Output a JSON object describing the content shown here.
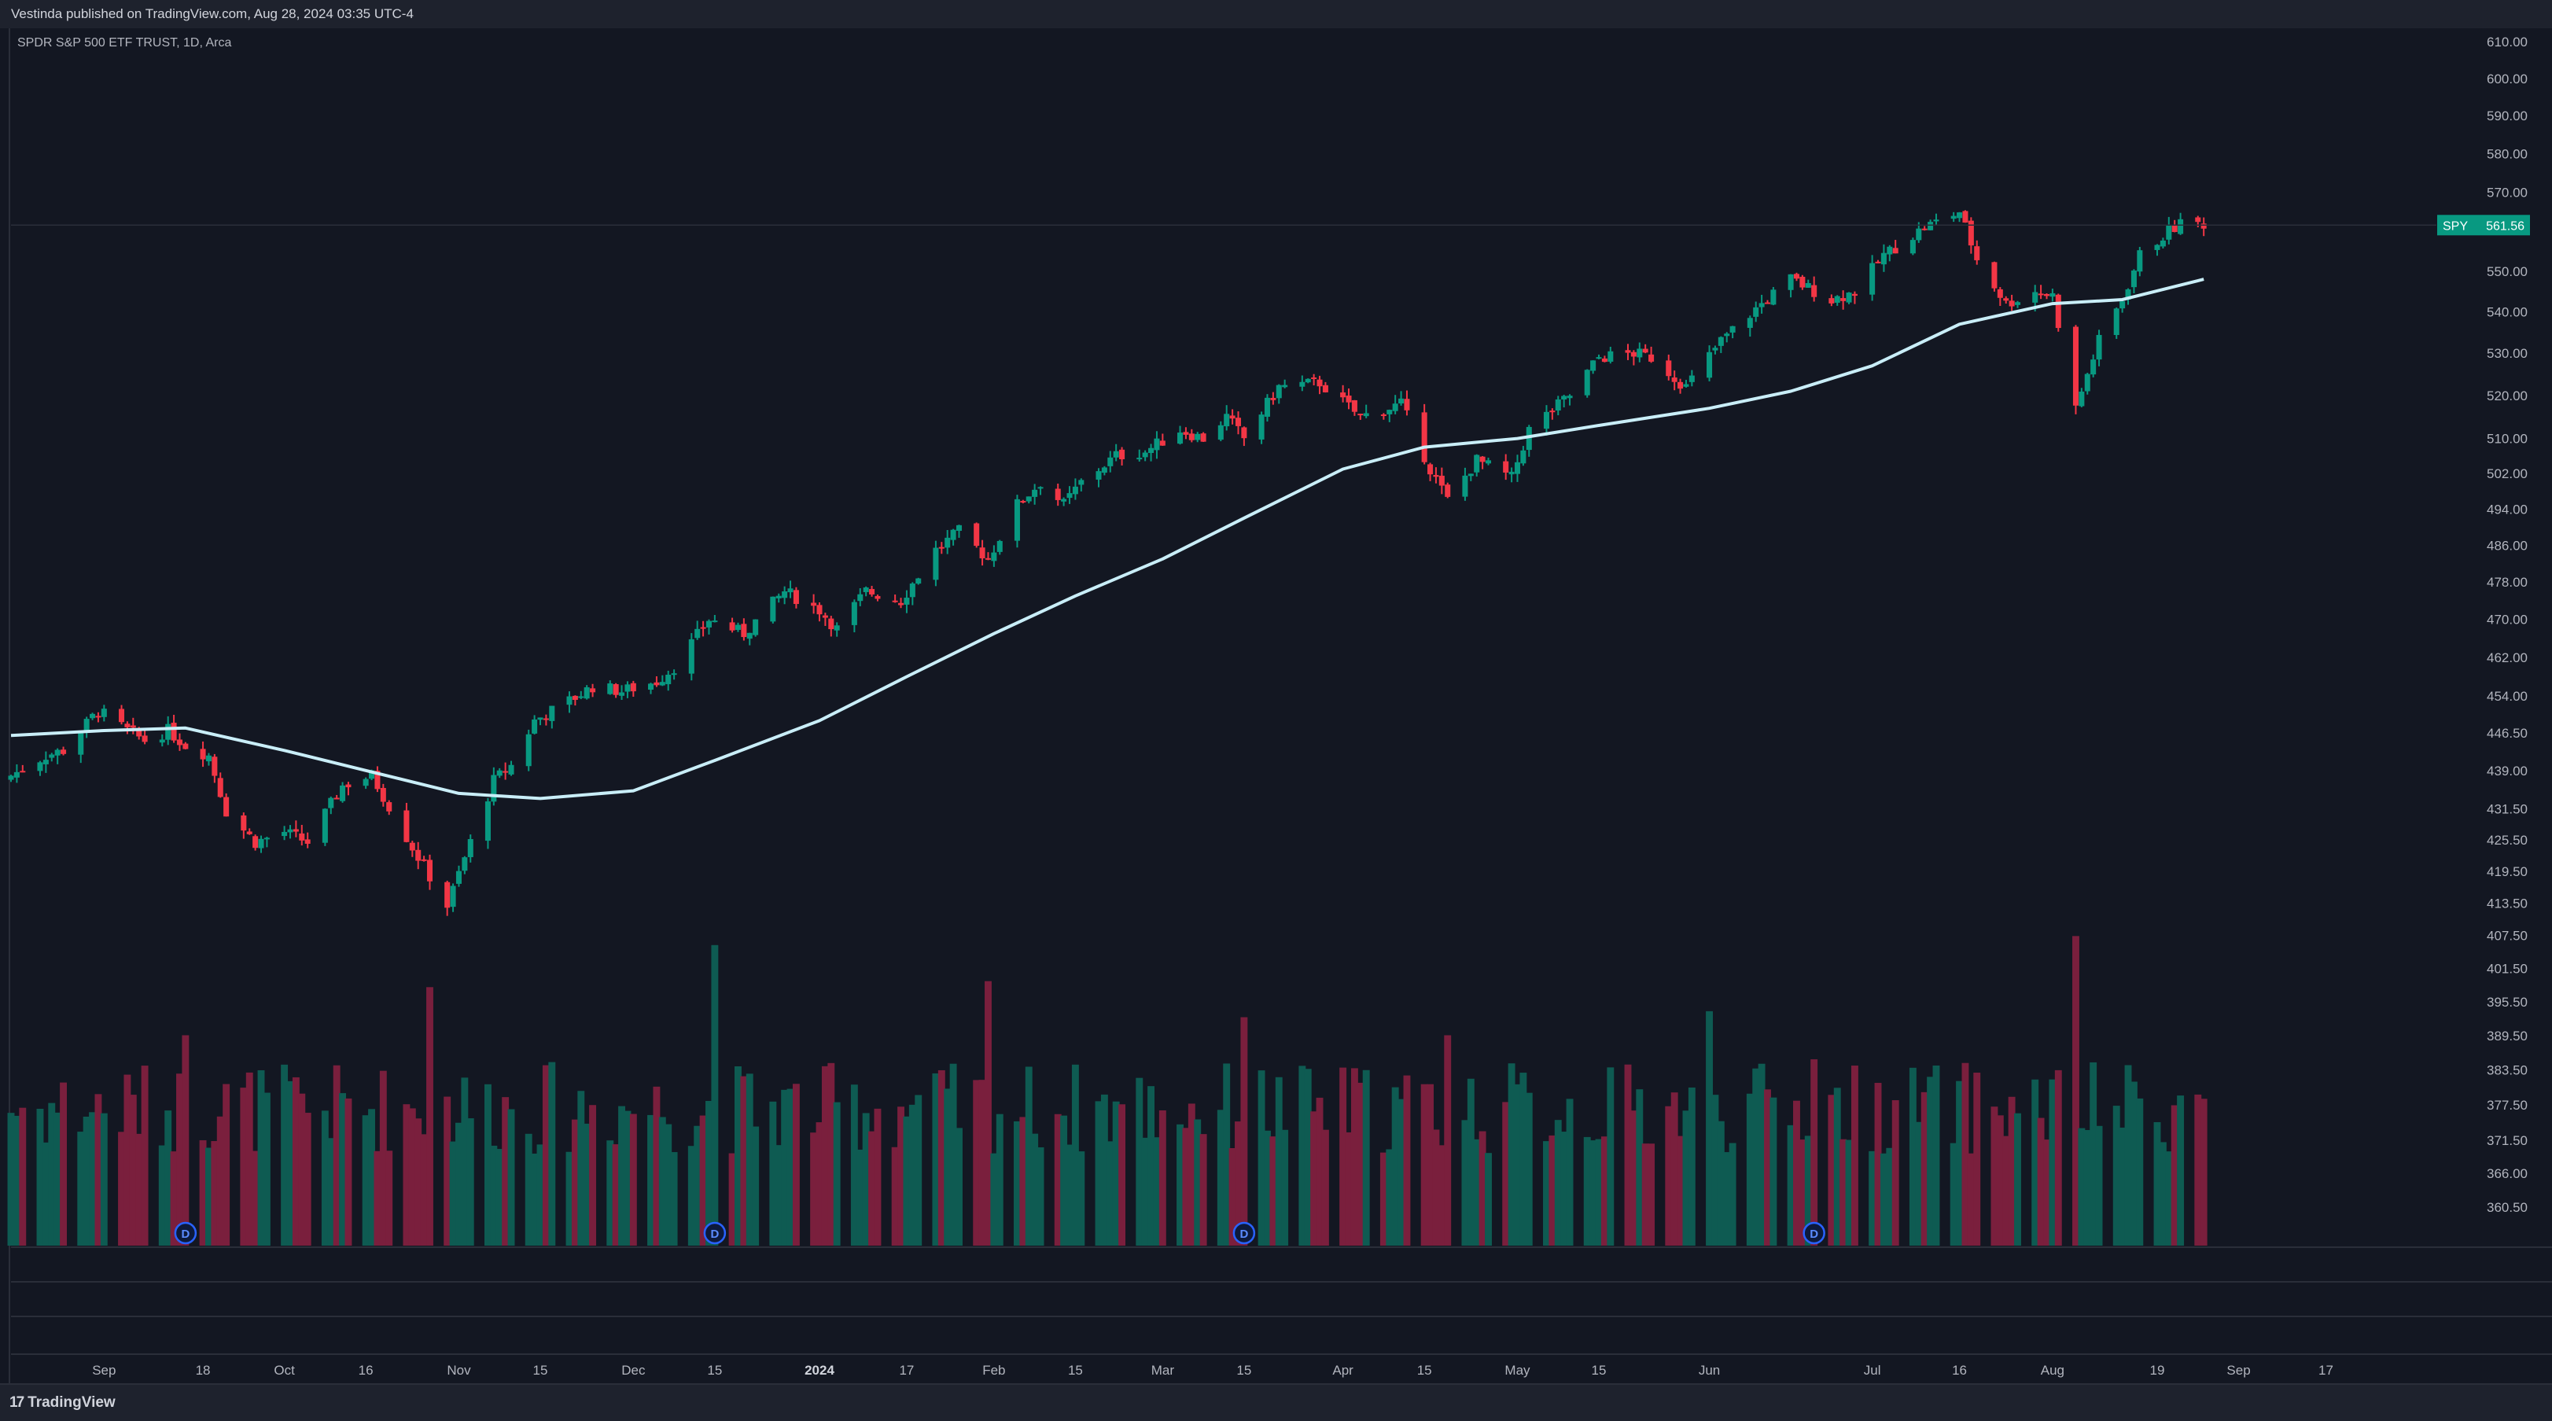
{
  "header": {
    "publisher_text": "Vestinda published on TradingView.com, Aug 28, 2024 03:35 UTC-4"
  },
  "legend": {
    "symbol_text": "SPDR S&P 500 ETF TRUST, 1D, Arca"
  },
  "price_tag": {
    "symbol": "SPY",
    "value": "561.56"
  },
  "footer": {
    "brand": "TradingView",
    "logo_glyph": "17"
  },
  "colors": {
    "background": "#131722",
    "up": "#089981",
    "down": "#f23645",
    "vol_up": "#0e5b52",
    "vol_down": "#7a1f3d",
    "ma": "#c9eef8",
    "grid": "#1f2330",
    "axis_text": "#b2b5be",
    "dividend": "#2962ff"
  },
  "chart_data": {
    "type": "candlestick",
    "symbol": "SPY",
    "interval": "1D",
    "exchange": "Arca",
    "y_scale": "log",
    "ylim": [
      353,
      612
    ],
    "last_price": 561.56,
    "y_ticks": [
      610.0,
      600.0,
      590.0,
      580.0,
      570.0,
      550.0,
      540.0,
      530.0,
      520.0,
      510.0,
      502.0,
      494.0,
      486.0,
      478.0,
      470.0,
      462.0,
      454.0,
      446.5,
      439.0,
      431.5,
      425.5,
      419.5,
      413.5,
      407.5,
      401.5,
      395.5,
      389.5,
      383.5,
      377.5,
      371.5,
      366.0,
      360.5
    ],
    "x_ticks": [
      {
        "label": "Sep",
        "date": "2023-09-01"
      },
      {
        "label": "18",
        "date": "2023-09-18"
      },
      {
        "label": "Oct",
        "date": "2023-10-02"
      },
      {
        "label": "16",
        "date": "2023-10-16"
      },
      {
        "label": "Nov",
        "date": "2023-11-01"
      },
      {
        "label": "15",
        "date": "2023-11-15"
      },
      {
        "label": "Dec",
        "date": "2023-12-01"
      },
      {
        "label": "15",
        "date": "2023-12-15"
      },
      {
        "label": "2024",
        "date": "2024-01-02",
        "bold": true
      },
      {
        "label": "17",
        "date": "2024-01-17"
      },
      {
        "label": "Feb",
        "date": "2024-02-01"
      },
      {
        "label": "15",
        "date": "2024-02-15"
      },
      {
        "label": "Mar",
        "date": "2024-03-01"
      },
      {
        "label": "15",
        "date": "2024-03-15"
      },
      {
        "label": "Apr",
        "date": "2024-04-01"
      },
      {
        "label": "15",
        "date": "2024-04-15"
      },
      {
        "label": "May",
        "date": "2024-05-01"
      },
      {
        "label": "15",
        "date": "2024-05-15"
      },
      {
        "label": "Jun",
        "date": "2024-06-03"
      },
      {
        "label": "Jul",
        "date": "2024-07-01"
      },
      {
        "label": "16",
        "date": "2024-07-16"
      },
      {
        "label": "Aug",
        "date": "2024-08-01"
      },
      {
        "label": "19",
        "date": "2024-08-19"
      },
      {
        "label": "Sep",
        "date": "2024-09-02"
      },
      {
        "label": "17",
        "date": "2024-09-17"
      }
    ],
    "x_range": [
      "2023-08-16",
      "2024-10-06"
    ],
    "price_path": [
      [
        "2023-08-16",
        438
      ],
      [
        "2023-08-22",
        442
      ],
      [
        "2023-08-25",
        443
      ],
      [
        "2023-08-31",
        451
      ],
      [
        "2023-09-05",
        447
      ],
      [
        "2023-09-08",
        445
      ],
      [
        "2023-09-12",
        447
      ],
      [
        "2023-09-15",
        444
      ],
      [
        "2023-09-19",
        442
      ],
      [
        "2023-09-22",
        431
      ],
      [
        "2023-09-27",
        425
      ],
      [
        "2023-10-02",
        427
      ],
      [
        "2023-10-06",
        425
      ],
      [
        "2023-10-12",
        436
      ],
      [
        "2023-10-17",
        438
      ],
      [
        "2023-10-20",
        432
      ],
      [
        "2023-10-24",
        424
      ],
      [
        "2023-10-30",
        413
      ],
      [
        "2023-11-03",
        425
      ],
      [
        "2023-11-07",
        437
      ],
      [
        "2023-11-10",
        440
      ],
      [
        "2023-11-14",
        449
      ],
      [
        "2023-11-20",
        453
      ],
      [
        "2023-11-24",
        456
      ],
      [
        "2023-11-29",
        455
      ],
      [
        "2023-12-05",
        457
      ],
      [
        "2023-12-08",
        460
      ],
      [
        "2023-12-14",
        470
      ],
      [
        "2023-12-20",
        467
      ],
      [
        "2023-12-27",
        476
      ],
      [
        "2024-01-02",
        472
      ],
      [
        "2024-01-05",
        468
      ],
      [
        "2024-01-10",
        476
      ],
      [
        "2024-01-16",
        474
      ],
      [
        "2024-01-22",
        485
      ],
      [
        "2024-01-26",
        489
      ],
      [
        "2024-01-31",
        483
      ],
      [
        "2024-02-05",
        495
      ],
      [
        "2024-02-09",
        500
      ],
      [
        "2024-02-13",
        495
      ],
      [
        "2024-02-16",
        500
      ],
      [
        "2024-02-22",
        506
      ],
      [
        "2024-02-27",
        507
      ],
      [
        "2024-03-04",
        512
      ],
      [
        "2024-03-08",
        510
      ],
      [
        "2024-03-12",
        515
      ],
      [
        "2024-03-15",
        510
      ],
      [
        "2024-03-21",
        522
      ],
      [
        "2024-03-28",
        523
      ],
      [
        "2024-04-04",
        515
      ],
      [
        "2024-04-11",
        518
      ],
      [
        "2024-04-16",
        503
      ],
      [
        "2024-04-19",
        496
      ],
      [
        "2024-04-24",
        505
      ],
      [
        "2024-04-30",
        501
      ],
      [
        "2024-05-03",
        512
      ],
      [
        "2024-05-10",
        520
      ],
      [
        "2024-05-15",
        529
      ],
      [
        "2024-05-21",
        530
      ],
      [
        "2024-05-24",
        529
      ],
      [
        "2024-05-30",
        522
      ],
      [
        "2024-06-05",
        533
      ],
      [
        "2024-06-12",
        542
      ],
      [
        "2024-06-17",
        548
      ],
      [
        "2024-06-24",
        543
      ],
      [
        "2024-06-28",
        545
      ],
      [
        "2024-07-03",
        554
      ],
      [
        "2024-07-10",
        561
      ],
      [
        "2024-07-16",
        565
      ],
      [
        "2024-07-19",
        553
      ],
      [
        "2024-07-24",
        542
      ],
      [
        "2024-07-29",
        545
      ],
      [
        "2024-08-01",
        544
      ],
      [
        "2024-08-05",
        517
      ],
      [
        "2024-08-09",
        533
      ],
      [
        "2024-08-13",
        543
      ],
      [
        "2024-08-16",
        554
      ],
      [
        "2024-08-21",
        560
      ],
      [
        "2024-08-23",
        562
      ],
      [
        "2024-08-27",
        562
      ]
    ],
    "series": [
      {
        "name": "",
        "type": "moving_average",
        "points": [
          [
            "2023-08-16",
            446
          ],
          [
            "2023-09-01",
            447
          ],
          [
            "2023-09-15",
            447.5
          ],
          [
            "2023-10-02",
            443
          ],
          [
            "2023-10-16",
            439
          ],
          [
            "2023-11-01",
            434.5
          ],
          [
            "2023-11-15",
            433.5
          ],
          [
            "2023-12-01",
            435
          ],
          [
            "2023-12-15",
            441
          ],
          [
            "2024-01-02",
            449
          ],
          [
            "2024-01-17",
            458
          ],
          [
            "2024-02-01",
            467
          ],
          [
            "2024-02-15",
            475
          ],
          [
            "2024-03-01",
            483
          ],
          [
            "2024-03-15",
            492
          ],
          [
            "2024-04-01",
            503
          ],
          [
            "2024-04-15",
            508
          ],
          [
            "2024-05-01",
            510
          ],
          [
            "2024-05-15",
            513
          ],
          [
            "2024-06-03",
            517
          ],
          [
            "2024-06-17",
            521
          ],
          [
            "2024-07-01",
            527
          ],
          [
            "2024-07-16",
            537
          ],
          [
            "2024-08-01",
            542
          ],
          [
            "2024-08-13",
            543
          ],
          [
            "2024-08-27",
            548
          ]
        ]
      }
    ],
    "dividend_dates": [
      "2023-09-15",
      "2023-12-15",
      "2024-03-15",
      "2024-06-21"
    ],
    "dividend_label": "D",
    "volume": {
      "scale_note": "relative",
      "spikes": [
        [
          "2023-12-15",
          1.0
        ],
        [
          "2024-08-05",
          1.03
        ],
        [
          "2023-09-15",
          0.7
        ],
        [
          "2024-01-31",
          0.88
        ],
        [
          "2024-03-15",
          0.76
        ],
        [
          "2024-06-21",
          0.62
        ],
        [
          "2023-10-27",
          0.86
        ],
        [
          "2024-04-19",
          0.7
        ],
        [
          "2024-06-03",
          0.78
        ]
      ]
    }
  }
}
